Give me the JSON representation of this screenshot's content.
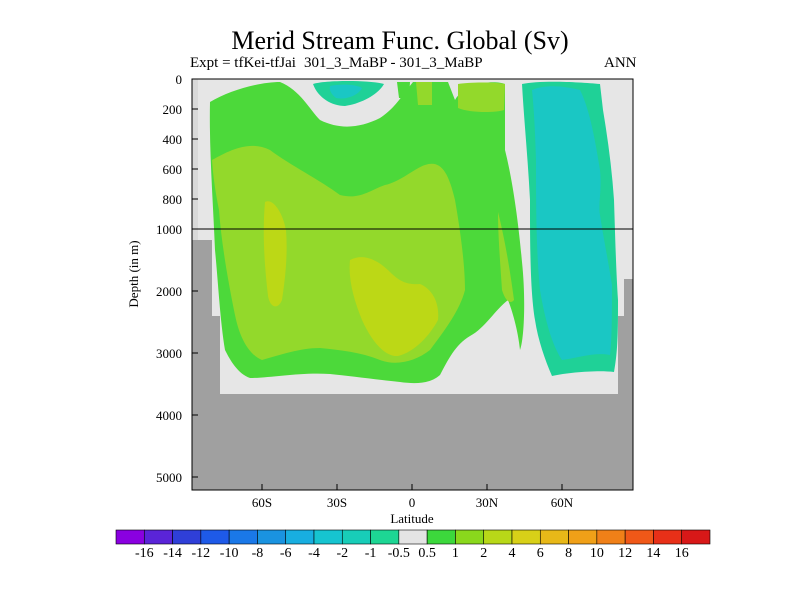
{
  "chart_data": {
    "type": "heatmap",
    "title": "Merid Stream Func. Global (Sv)",
    "subtitle_left": "Expt = tfKei-tfJai",
    "subtitle_center": "301_3_MaBP - 301_3_MaBP",
    "subtitle_right": "ANN",
    "xlabel": "Latitude",
    "ylabel": "Depth (in m)",
    "x_ticks": [
      {
        "value": -60,
        "label": "60S"
      },
      {
        "value": -30,
        "label": "30S"
      },
      {
        "value": 0,
        "label": "0"
      },
      {
        "value": 30,
        "label": "30N"
      },
      {
        "value": 60,
        "label": "60N"
      }
    ],
    "y_ticks_upper": [
      0,
      200,
      400,
      600,
      800,
      1000
    ],
    "y_ticks_lower": [
      1000,
      2000,
      3000,
      4000,
      5000
    ],
    "colorbar": {
      "levels": [
        "-16",
        "-14",
        "-12",
        "-10",
        "-8",
        "-6",
        "-4",
        "-2",
        "-1",
        "-0.5",
        "0.5",
        "1",
        "2",
        "4",
        "6",
        "8",
        "10",
        "12",
        "14",
        "16"
      ],
      "colors": [
        "#8a00e0",
        "#5a24d8",
        "#2f3fd8",
        "#1e5ae8",
        "#1a78e8",
        "#1a93e0",
        "#18aee0",
        "#16c4d0",
        "#18cdb8",
        "#1dd694",
        "#e4e4e4",
        "#3cd83c",
        "#8ad81c",
        "#b8d818",
        "#d8d018",
        "#e8b818",
        "#f0a018",
        "#f08018",
        "#f05818",
        "#e83018",
        "#d81818"
      ]
    },
    "regions": [
      {
        "id": "outer-green",
        "level": "0.5 to 1",
        "color": "#4cd93a"
      },
      {
        "id": "green-yellow",
        "level": "1 to 2",
        "color": "#93d92b"
      },
      {
        "id": "yellow",
        "level": "2 to 4",
        "color": "#bcd816"
      },
      {
        "id": "teal",
        "level": "-1 to -0.5",
        "color": "#1fd197"
      },
      {
        "id": "cyan",
        "level": "-2 to -1",
        "color": "#1ac7c4"
      }
    ]
  }
}
